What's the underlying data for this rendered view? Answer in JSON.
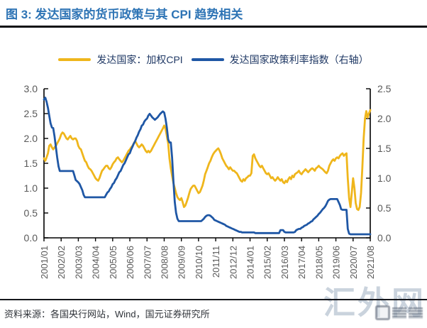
{
  "header": {
    "title": "图 3: 发达国家的货币政策与其 CPI 趋势相关"
  },
  "legend": {
    "items": [
      {
        "label": "发达国家：加权CPI",
        "color": "#EFB61C"
      },
      {
        "label": "发达国家政策利率指数（右轴）",
        "color": "#1F57A5"
      }
    ]
  },
  "source": {
    "text": "资料来源：各国央行网站，Wind，国元证券研究所"
  },
  "watermark": {
    "text": "汇外网"
  },
  "chart_data": {
    "type": "line",
    "title": "发达国家的货币政策与其 CPI 趋势相关",
    "x_unit": "month",
    "x_range": [
      "2001/01",
      "2021/08"
    ],
    "x_tick_labels": [
      "2001/01",
      "2002/02",
      "2003/03",
      "2004/04",
      "2005/05",
      "2006/06",
      "2007/07",
      "2008/08",
      "2009/09",
      "2010/10",
      "2011/11",
      "2012/12",
      "2014/01",
      "2015/02",
      "2016/03",
      "2017/04",
      "2018/05",
      "2019/06",
      "2020/07",
      "2021/08"
    ],
    "x_tick_step_months": 13,
    "left_axis": {
      "min": 0,
      "max": 3.0,
      "ticks": [
        "3.0",
        "2.5",
        "2.0",
        "1.5",
        "1.0",
        "0.5",
        "0.0"
      ]
    },
    "right_axis": {
      "min": 0,
      "max": 2.5,
      "ticks": [
        "2.5",
        "2.0",
        "1.5",
        "1.0",
        "0.5",
        "0.0"
      ]
    },
    "grid": false,
    "legend_position": "top",
    "axis_color": "#000000",
    "tick_label_color": "#595959",
    "series": [
      {
        "name": "发达国家：加权CPI",
        "axis": "left",
        "color": "#EFB61C",
        "values": [
          1.6,
          1.55,
          1.62,
          1.7,
          1.85,
          1.88,
          1.82,
          1.78,
          1.82,
          1.85,
          1.9,
          1.95,
          2.0,
          2.08,
          2.12,
          2.1,
          2.05,
          2.0,
          1.98,
          2.02,
          2.05,
          2.0,
          1.98,
          2.0,
          2.0,
          1.95,
          1.85,
          1.8,
          1.78,
          1.7,
          1.62,
          1.55,
          1.52,
          1.45,
          1.4,
          1.38,
          1.35,
          1.3,
          1.25,
          1.2,
          1.17,
          1.15,
          1.2,
          1.28,
          1.35,
          1.38,
          1.42,
          1.45,
          1.45,
          1.4,
          1.38,
          1.42,
          1.48,
          1.52,
          1.55,
          1.6,
          1.62,
          1.58,
          1.55,
          1.52,
          1.55,
          1.6,
          1.65,
          1.7,
          1.75,
          1.78,
          1.82,
          1.85,
          1.9,
          1.95,
          1.9,
          1.85,
          1.82,
          1.85,
          1.88,
          1.85,
          1.8,
          1.75,
          1.72,
          1.75,
          1.72,
          1.75,
          1.8,
          1.85,
          1.9,
          1.95,
          2.0,
          2.05,
          2.1,
          2.15,
          2.2,
          2.26,
          2.2,
          2.05,
          1.9,
          1.6,
          1.4,
          1.25,
          1.1,
          1.0,
          0.9,
          0.82,
          0.78,
          0.76,
          0.8,
          0.72,
          0.62,
          0.65,
          0.72,
          0.8,
          0.9,
          0.98,
          1.02,
          1.05,
          1.05,
          1.0,
          0.95,
          0.9,
          0.92,
          0.98,
          1.05,
          1.15,
          1.28,
          1.35,
          1.42,
          1.5,
          1.55,
          1.62,
          1.68,
          1.72,
          1.75,
          1.78,
          1.8,
          1.75,
          1.68,
          1.6,
          1.55,
          1.5,
          1.45,
          1.42,
          1.38,
          1.42,
          1.38,
          1.35,
          1.35,
          1.32,
          1.3,
          1.25,
          1.2,
          1.15,
          1.13,
          1.18,
          1.15,
          1.2,
          1.22,
          1.25,
          1.25,
          1.3,
          1.65,
          1.68,
          1.6,
          1.55,
          1.5,
          1.45,
          1.42,
          1.45,
          1.4,
          1.35,
          1.3,
          1.28,
          1.3,
          1.25,
          1.2,
          1.22,
          1.18,
          1.15,
          1.18,
          1.22,
          1.18,
          1.15,
          1.18,
          1.12,
          1.1,
          1.15,
          1.12,
          1.18,
          1.22,
          1.18,
          1.25,
          1.22,
          1.28,
          1.3,
          1.32,
          1.35,
          1.3,
          1.28,
          1.32,
          1.35,
          1.38,
          1.35,
          1.32,
          1.35,
          1.38,
          1.4,
          1.38,
          1.35,
          1.4,
          1.42,
          1.45,
          1.42,
          1.4,
          1.38,
          1.35,
          1.32,
          1.3,
          1.35,
          1.45,
          1.5,
          1.55,
          1.58,
          1.55,
          1.6,
          1.62,
          1.6,
          1.65,
          1.68,
          1.7,
          1.65,
          1.68,
          1.7,
          1.2,
          0.8,
          0.62,
          0.9,
          1.2,
          1.0,
          0.7,
          0.58,
          0.56,
          0.62,
          0.9,
          1.4,
          2.0,
          2.4,
          2.55,
          2.42,
          2.5,
          2.57
        ]
      },
      {
        "name": "发达国家政策利率指数（右轴）",
        "axis": "right",
        "color": "#1F57A5",
        "values": [
          2.32,
          2.35,
          2.28,
          2.18,
          2.05,
          1.92,
          1.85,
          1.84,
          1.7,
          1.52,
          1.35,
          1.2,
          1.12,
          1.12,
          1.12,
          1.12,
          1.12,
          1.12,
          1.12,
          1.12,
          1.12,
          1.12,
          1.12,
          1.05,
          0.97,
          0.95,
          0.93,
          0.9,
          0.85,
          0.8,
          0.72,
          0.68,
          0.68,
          0.68,
          0.68,
          0.68,
          0.68,
          0.68,
          0.68,
          0.68,
          0.68,
          0.68,
          0.68,
          0.68,
          0.68,
          0.68,
          0.68,
          0.72,
          0.76,
          0.78,
          0.82,
          0.85,
          0.9,
          0.92,
          0.97,
          1.0,
          1.05,
          1.1,
          1.12,
          1.17,
          1.22,
          1.25,
          1.3,
          1.35,
          1.4,
          1.42,
          1.48,
          1.53,
          1.58,
          1.62,
          1.68,
          1.72,
          1.78,
          1.82,
          1.88,
          1.9,
          1.95,
          1.98,
          2.0,
          2.05,
          2.08,
          2.05,
          2.02,
          2.0,
          1.98,
          2.0,
          2.02,
          2.05,
          2.08,
          2.1,
          2.12,
          2.1,
          2.0,
          1.85,
          1.65,
          1.6,
          1.6,
          1.35,
          0.95,
          0.6,
          0.42,
          0.32,
          0.28,
          0.28,
          0.28,
          0.28,
          0.28,
          0.28,
          0.28,
          0.28,
          0.28,
          0.28,
          0.28,
          0.28,
          0.28,
          0.28,
          0.28,
          0.28,
          0.28,
          0.28,
          0.3,
          0.32,
          0.35,
          0.37,
          0.38,
          0.38,
          0.37,
          0.35,
          0.33,
          0.3,
          0.29,
          0.28,
          0.27,
          0.26,
          0.25,
          0.24,
          0.23,
          0.22,
          0.2,
          0.19,
          0.18,
          0.17,
          0.16,
          0.15,
          0.14,
          0.13,
          0.12,
          0.11,
          0.1,
          0.1,
          0.09,
          0.09,
          0.09,
          0.09,
          0.09,
          0.09,
          0.09,
          0.09,
          0.09,
          0.09,
          0.08,
          0.08,
          0.08,
          0.08,
          0.08,
          0.08,
          0.08,
          0.08,
          0.08,
          0.08,
          0.08,
          0.08,
          0.08,
          0.08,
          0.08,
          0.08,
          0.08,
          0.08,
          0.08,
          0.13,
          0.13,
          0.13,
          0.1,
          0.09,
          0.09,
          0.09,
          0.09,
          0.09,
          0.09,
          0.09,
          0.1,
          0.13,
          0.14,
          0.15,
          0.15,
          0.17,
          0.18,
          0.2,
          0.21,
          0.22,
          0.24,
          0.25,
          0.27,
          0.28,
          0.31,
          0.33,
          0.35,
          0.37,
          0.4,
          0.42,
          0.45,
          0.48,
          0.5,
          0.53,
          0.57,
          0.62,
          0.64,
          0.65,
          0.65,
          0.65,
          0.65,
          0.65,
          0.65,
          0.6,
          0.55,
          0.48,
          0.47,
          0.47,
          0.47,
          0.47,
          0.15,
          0.07,
          0.06,
          0.06,
          0.06,
          0.06,
          0.06,
          0.06,
          0.06,
          0.06,
          0.06,
          0.06,
          0.06,
          0.06,
          0.06,
          0.06,
          0.06,
          0.06
        ]
      }
    ]
  }
}
